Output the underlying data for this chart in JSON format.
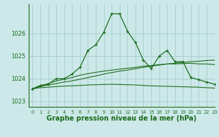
{
  "background_color": "#cce8e8",
  "grid_color": "#a8d0d0",
  "line_color": "#1a6b1a",
  "xlabel": "Graphe pression niveau de la mer (hPa)",
  "xlabel_fontsize": 7.0,
  "ylim": [
    1022.75,
    1027.3
  ],
  "xlim": [
    -0.5,
    23
  ],
  "yticks": [
    1023,
    1024,
    1025,
    1026
  ],
  "xticks": [
    0,
    1,
    2,
    3,
    4,
    5,
    6,
    7,
    8,
    9,
    10,
    11,
    12,
    13,
    14,
    15,
    16,
    17,
    18,
    19,
    20,
    21,
    22,
    23
  ],
  "series1": [
    1023.55,
    1023.7,
    1023.75,
    1024.0,
    1024.0,
    1024.2,
    1024.5,
    1025.25,
    1025.5,
    1026.05,
    1026.87,
    1026.87,
    1026.1,
    1025.6,
    1024.82,
    1024.45,
    1025.0,
    1025.25,
    1024.75,
    1024.75,
    1024.05,
    1023.95,
    1023.85,
    1023.75
  ],
  "series2": [
    1023.55,
    1023.65,
    1023.72,
    1023.78,
    1023.85,
    1023.9,
    1023.97,
    1024.05,
    1024.12,
    1024.2,
    1024.27,
    1024.33,
    1024.38,
    1024.44,
    1024.5,
    1024.55,
    1024.6,
    1024.65,
    1024.68,
    1024.72,
    1024.75,
    1024.77,
    1024.8,
    1024.82
  ],
  "series3": [
    1023.55,
    1023.6,
    1023.62,
    1023.65,
    1023.67,
    1023.68,
    1023.7,
    1023.72,
    1023.73,
    1023.74,
    1023.75,
    1023.74,
    1023.73,
    1023.72,
    1023.7,
    1023.68,
    1023.67,
    1023.66,
    1023.65,
    1023.64,
    1023.63,
    1023.62,
    1023.6,
    1023.58
  ],
  "series4": [
    1023.55,
    1023.68,
    1023.78,
    1023.9,
    1023.97,
    1024.05,
    1024.15,
    1024.22,
    1024.28,
    1024.33,
    1024.38,
    1024.42,
    1024.46,
    1024.5,
    1024.55,
    1024.58,
    1024.62,
    1024.65,
    1024.65,
    1024.67,
    1024.68,
    1024.65,
    1024.65,
    1024.62
  ]
}
